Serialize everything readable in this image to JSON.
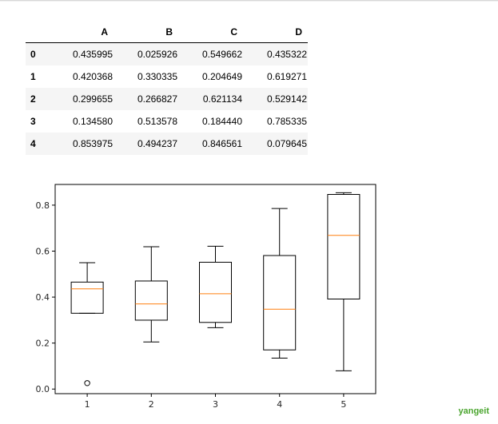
{
  "dataframe": {
    "columns": [
      "A",
      "B",
      "C",
      "D"
    ],
    "rows": [
      {
        "index": "0",
        "values": [
          "0.435995",
          "0.025926",
          "0.549662",
          "0.435322"
        ]
      },
      {
        "index": "1",
        "values": [
          "0.420368",
          "0.330335",
          "0.204649",
          "0.619271"
        ]
      },
      {
        "index": "2",
        "values": [
          "0.299655",
          "0.266827",
          "0.621134",
          "0.529142"
        ]
      },
      {
        "index": "3",
        "values": [
          "0.134580",
          "0.513578",
          "0.184440",
          "0.785335"
        ]
      },
      {
        "index": "4",
        "values": [
          "0.853975",
          "0.494237",
          "0.846561",
          "0.079645"
        ]
      }
    ]
  },
  "chart_data": {
    "type": "box",
    "categories": [
      "1",
      "2",
      "3",
      "4",
      "5"
    ],
    "ylim": [
      -0.02,
      0.89
    ],
    "yticks": [
      "0.0",
      "0.2",
      "0.4",
      "0.6",
      "0.8"
    ],
    "grid": false,
    "boxes": [
      {
        "q1": 0.3297,
        "median": 0.4357,
        "q3": 0.4653,
        "whisker_low": 0.3297,
        "whisker_high": 0.5497,
        "outliers": [
          0.0259
        ]
      },
      {
        "q1": 0.2997,
        "median": 0.3703,
        "q3": 0.47,
        "whisker_low": 0.2047,
        "whisker_high": 0.6193,
        "outliers": []
      },
      {
        "q1": 0.2899,
        "median": 0.4146,
        "q3": 0.5517,
        "whisker_low": 0.2668,
        "whisker_high": 0.6211,
        "outliers": []
      },
      {
        "q1": 0.1703,
        "median": 0.3473,
        "q3": 0.5808,
        "whisker_low": 0.1346,
        "whisker_high": 0.7853,
        "outliers": []
      },
      {
        "q1": 0.3916,
        "median": 0.6685,
        "q3": 0.8466,
        "whisker_low": 0.0796,
        "whisker_high": 0.854,
        "outliers": []
      }
    ],
    "colors": {
      "box": "#000000",
      "median": "#ff7f0e"
    }
  },
  "watermark": "yangeit"
}
